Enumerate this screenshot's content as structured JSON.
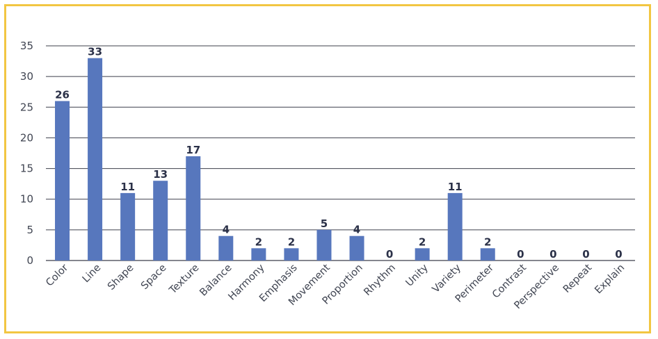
{
  "chart_data": {
    "type": "bar",
    "title": "",
    "xlabel": "",
    "ylabel": "",
    "categories": [
      "Color",
      "Line",
      "Shape",
      "Space",
      "Texture",
      "Balance",
      "Harmony",
      "Emphasis",
      "Movement",
      "Proportion",
      "Rhythm",
      "Unity",
      "Variety",
      "Perimeter",
      "Contrast",
      "Perspective",
      "Repeat",
      "Explain"
    ],
    "values": [
      26,
      33,
      11,
      13,
      17,
      4,
      2,
      2,
      5,
      4,
      0,
      2,
      11,
      2,
      0,
      0,
      0,
      0
    ],
    "ylim": [
      0,
      35
    ],
    "yticks": [
      0,
      5,
      10,
      15,
      20,
      25,
      30,
      35
    ],
    "grid": true,
    "legend": "none",
    "bar_color": "#5777bd",
    "border_color": "#f2c642",
    "data_labels": true
  }
}
